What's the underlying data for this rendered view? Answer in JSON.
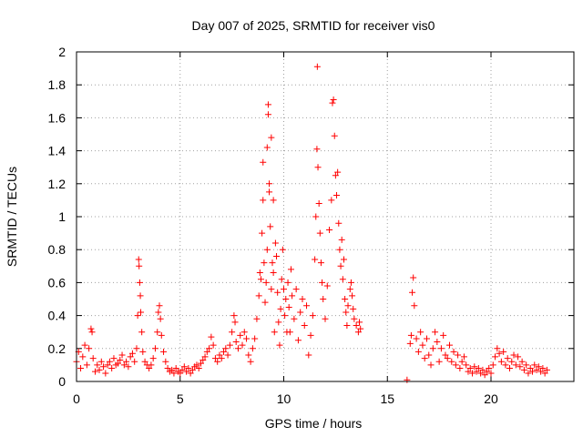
{
  "chart_data": {
    "type": "scatter",
    "title": "Day 007 of 2025, SRMTID for receiver vis0",
    "xlabel": "GPS time / hours",
    "ylabel": "SRMTID / TECUs",
    "xlim": [
      0,
      24
    ],
    "ylim": [
      0,
      2
    ],
    "x_ticks": [
      0,
      5,
      10,
      15,
      20
    ],
    "y_ticks": [
      0,
      0.2,
      0.4,
      0.6,
      0.8,
      1,
      1.2,
      1.4,
      1.6,
      1.8,
      2
    ],
    "x_tick_labels": [
      "0",
      "5",
      "10",
      "15",
      "20"
    ],
    "y_tick_labels": [
      "0",
      "0.2",
      "0.4",
      "0.6",
      "0.8",
      "1",
      "1.2",
      "1.4",
      "1.6",
      "1.8",
      "2"
    ],
    "grid": true,
    "marker": "+",
    "color": "#ff0000",
    "series": [
      {
        "name": "vis0",
        "points": [
          [
            0.0,
            0.12
          ],
          [
            0.1,
            0.18
          ],
          [
            0.2,
            0.08
          ],
          [
            0.3,
            0.15
          ],
          [
            0.4,
            0.22
          ],
          [
            0.5,
            0.1
          ],
          [
            0.6,
            0.2
          ],
          [
            0.7,
            0.32
          ],
          [
            0.75,
            0.3
          ],
          [
            0.8,
            0.14
          ],
          [
            0.9,
            0.06
          ],
          [
            1.0,
            0.1
          ],
          [
            1.1,
            0.07
          ],
          [
            1.2,
            0.12
          ],
          [
            1.3,
            0.09
          ],
          [
            1.4,
            0.05
          ],
          [
            1.5,
            0.1
          ],
          [
            1.6,
            0.12
          ],
          [
            1.7,
            0.08
          ],
          [
            1.8,
            0.14
          ],
          [
            1.9,
            0.1
          ],
          [
            2.0,
            0.11
          ],
          [
            2.1,
            0.13
          ],
          [
            2.2,
            0.16
          ],
          [
            2.3,
            0.1
          ],
          [
            2.4,
            0.12
          ],
          [
            2.5,
            0.09
          ],
          [
            2.6,
            0.15
          ],
          [
            2.7,
            0.17
          ],
          [
            2.8,
            0.12
          ],
          [
            2.9,
            0.2
          ],
          [
            2.95,
            0.4
          ],
          [
            3.0,
            0.74
          ],
          [
            3.02,
            0.7
          ],
          [
            3.05,
            0.6
          ],
          [
            3.08,
            0.52
          ],
          [
            3.1,
            0.42
          ],
          [
            3.15,
            0.3
          ],
          [
            3.2,
            0.18
          ],
          [
            3.3,
            0.12
          ],
          [
            3.4,
            0.1
          ],
          [
            3.5,
            0.08
          ],
          [
            3.6,
            0.1
          ],
          [
            3.7,
            0.14
          ],
          [
            3.8,
            0.2
          ],
          [
            3.9,
            0.3
          ],
          [
            3.95,
            0.42
          ],
          [
            4.0,
            0.46
          ],
          [
            4.05,
            0.38
          ],
          [
            4.1,
            0.28
          ],
          [
            4.2,
            0.18
          ],
          [
            4.3,
            0.12
          ],
          [
            4.4,
            0.08
          ],
          [
            4.5,
            0.06
          ],
          [
            4.6,
            0.07
          ],
          [
            4.7,
            0.05
          ],
          [
            4.8,
            0.08
          ],
          [
            4.9,
            0.06
          ],
          [
            5.0,
            0.05
          ],
          [
            5.1,
            0.07
          ],
          [
            5.2,
            0.09
          ],
          [
            5.3,
            0.06
          ],
          [
            5.4,
            0.08
          ],
          [
            5.5,
            0.05
          ],
          [
            5.6,
            0.07
          ],
          [
            5.7,
            0.09
          ],
          [
            5.8,
            0.1
          ],
          [
            5.9,
            0.08
          ],
          [
            6.0,
            0.11
          ],
          [
            6.1,
            0.13
          ],
          [
            6.2,
            0.15
          ],
          [
            6.3,
            0.18
          ],
          [
            6.4,
            0.2
          ],
          [
            6.5,
            0.27
          ],
          [
            6.6,
            0.22
          ],
          [
            6.7,
            0.14
          ],
          [
            6.8,
            0.12
          ],
          [
            6.9,
            0.16
          ],
          [
            7.0,
            0.14
          ],
          [
            7.1,
            0.18
          ],
          [
            7.2,
            0.2
          ],
          [
            7.3,
            0.16
          ],
          [
            7.4,
            0.22
          ],
          [
            7.5,
            0.3
          ],
          [
            7.6,
            0.4
          ],
          [
            7.65,
            0.36
          ],
          [
            7.7,
            0.24
          ],
          [
            7.8,
            0.2
          ],
          [
            7.9,
            0.28
          ],
          [
            8.0,
            0.22
          ],
          [
            8.1,
            0.3
          ],
          [
            8.2,
            0.26
          ],
          [
            8.3,
            0.16
          ],
          [
            8.4,
            0.12
          ],
          [
            8.5,
            0.2
          ],
          [
            8.6,
            0.26
          ],
          [
            8.7,
            0.38
          ],
          [
            8.8,
            0.52
          ],
          [
            8.85,
            0.66
          ],
          [
            8.9,
            0.62
          ],
          [
            8.95,
            0.9
          ],
          [
            9.0,
            1.1
          ],
          [
            9.0,
            1.33
          ],
          [
            9.05,
            0.72
          ],
          [
            9.1,
            0.48
          ],
          [
            9.15,
            0.6
          ],
          [
            9.2,
            0.8
          ],
          [
            9.2,
            1.42
          ],
          [
            9.25,
            1.68
          ],
          [
            9.25,
            1.62
          ],
          [
            9.3,
            1.2
          ],
          [
            9.3,
            1.15
          ],
          [
            9.35,
            0.94
          ],
          [
            9.4,
            1.48
          ],
          [
            9.4,
            0.56
          ],
          [
            9.45,
            0.72
          ],
          [
            9.5,
            1.1
          ],
          [
            9.5,
            0.66
          ],
          [
            9.55,
            0.3
          ],
          [
            9.6,
            0.84
          ],
          [
            9.65,
            0.76
          ],
          [
            9.7,
            0.54
          ],
          [
            9.75,
            0.36
          ],
          [
            9.8,
            0.22
          ],
          [
            9.85,
            0.44
          ],
          [
            9.9,
            0.62
          ],
          [
            9.95,
            0.8
          ],
          [
            10.0,
            0.56
          ],
          [
            10.05,
            0.4
          ],
          [
            10.1,
            0.5
          ],
          [
            10.15,
            0.3
          ],
          [
            10.2,
            0.6
          ],
          [
            10.25,
            0.45
          ],
          [
            10.3,
            0.3
          ],
          [
            10.35,
            0.68
          ],
          [
            10.4,
            0.52
          ],
          [
            10.5,
            0.38
          ],
          [
            10.6,
            0.56
          ],
          [
            10.7,
            0.25
          ],
          [
            10.8,
            0.42
          ],
          [
            10.9,
            0.5
          ],
          [
            11.0,
            0.34
          ],
          [
            11.1,
            0.46
          ],
          [
            11.2,
            0.16
          ],
          [
            11.3,
            0.28
          ],
          [
            11.4,
            0.4
          ],
          [
            11.5,
            0.74
          ],
          [
            11.55,
            1.0
          ],
          [
            11.6,
            1.41
          ],
          [
            11.62,
            1.91
          ],
          [
            11.65,
            1.3
          ],
          [
            11.7,
            1.08
          ],
          [
            11.75,
            0.9
          ],
          [
            11.8,
            0.72
          ],
          [
            11.85,
            0.6
          ],
          [
            11.9,
            0.5
          ],
          [
            12.0,
            0.38
          ],
          [
            12.1,
            0.58
          ],
          [
            12.2,
            0.92
          ],
          [
            12.3,
            1.1
          ],
          [
            12.35,
            1.69
          ],
          [
            12.4,
            1.71
          ],
          [
            12.45,
            1.49
          ],
          [
            12.5,
            1.25
          ],
          [
            12.55,
            1.13
          ],
          [
            12.6,
            1.27
          ],
          [
            12.65,
            0.96
          ],
          [
            12.7,
            0.8
          ],
          [
            12.75,
            0.7
          ],
          [
            12.8,
            0.86
          ],
          [
            12.85,
            0.62
          ],
          [
            12.9,
            0.74
          ],
          [
            12.95,
            0.5
          ],
          [
            13.0,
            0.42
          ],
          [
            13.05,
            0.34
          ],
          [
            13.1,
            0.46
          ],
          [
            13.2,
            0.56
          ],
          [
            13.25,
            0.6
          ],
          [
            13.3,
            0.52
          ],
          [
            13.35,
            0.44
          ],
          [
            13.4,
            0.38
          ],
          [
            13.5,
            0.34
          ],
          [
            13.6,
            0.3
          ],
          [
            13.65,
            0.36
          ],
          [
            13.7,
            0.32
          ],
          [
            15.95,
            0.01
          ],
          [
            16.1,
            0.23
          ],
          [
            16.15,
            0.28
          ],
          [
            16.2,
            0.54
          ],
          [
            16.25,
            0.63
          ],
          [
            16.3,
            0.46
          ],
          [
            16.4,
            0.26
          ],
          [
            16.5,
            0.18
          ],
          [
            16.6,
            0.3
          ],
          [
            16.7,
            0.22
          ],
          [
            16.8,
            0.14
          ],
          [
            16.9,
            0.26
          ],
          [
            17.0,
            0.16
          ],
          [
            17.1,
            0.1
          ],
          [
            17.2,
            0.2
          ],
          [
            17.3,
            0.3
          ],
          [
            17.4,
            0.24
          ],
          [
            17.5,
            0.12
          ],
          [
            17.6,
            0.2
          ],
          [
            17.7,
            0.28
          ],
          [
            17.8,
            0.16
          ],
          [
            17.9,
            0.14
          ],
          [
            18.0,
            0.22
          ],
          [
            18.1,
            0.12
          ],
          [
            18.2,
            0.18
          ],
          [
            18.3,
            0.1
          ],
          [
            18.4,
            0.16
          ],
          [
            18.5,
            0.08
          ],
          [
            18.6,
            0.12
          ],
          [
            18.7,
            0.15
          ],
          [
            18.8,
            0.1
          ],
          [
            18.9,
            0.06
          ],
          [
            19.0,
            0.08
          ],
          [
            19.1,
            0.05
          ],
          [
            19.2,
            0.09
          ],
          [
            19.3,
            0.06
          ],
          [
            19.4,
            0.08
          ],
          [
            19.5,
            0.05
          ],
          [
            19.6,
            0.07
          ],
          [
            19.7,
            0.04
          ],
          [
            19.8,
            0.06
          ],
          [
            19.9,
            0.08
          ],
          [
            20.0,
            0.05
          ],
          [
            20.1,
            0.1
          ],
          [
            20.2,
            0.15
          ],
          [
            20.3,
            0.2
          ],
          [
            20.4,
            0.17
          ],
          [
            20.5,
            0.12
          ],
          [
            20.6,
            0.18
          ],
          [
            20.7,
            0.1
          ],
          [
            20.8,
            0.14
          ],
          [
            20.9,
            0.08
          ],
          [
            21.0,
            0.12
          ],
          [
            21.1,
            0.16
          ],
          [
            21.2,
            0.1
          ],
          [
            21.3,
            0.15
          ],
          [
            21.4,
            0.09
          ],
          [
            21.5,
            0.12
          ],
          [
            21.6,
            0.07
          ],
          [
            21.7,
            0.1
          ],
          [
            21.8,
            0.05
          ],
          [
            21.9,
            0.08
          ],
          [
            22.0,
            0.06
          ],
          [
            22.1,
            0.1
          ],
          [
            22.2,
            0.07
          ],
          [
            22.3,
            0.09
          ],
          [
            22.4,
            0.06
          ],
          [
            22.5,
            0.08
          ],
          [
            22.6,
            0.05
          ],
          [
            22.7,
            0.07
          ]
        ]
      }
    ]
  }
}
